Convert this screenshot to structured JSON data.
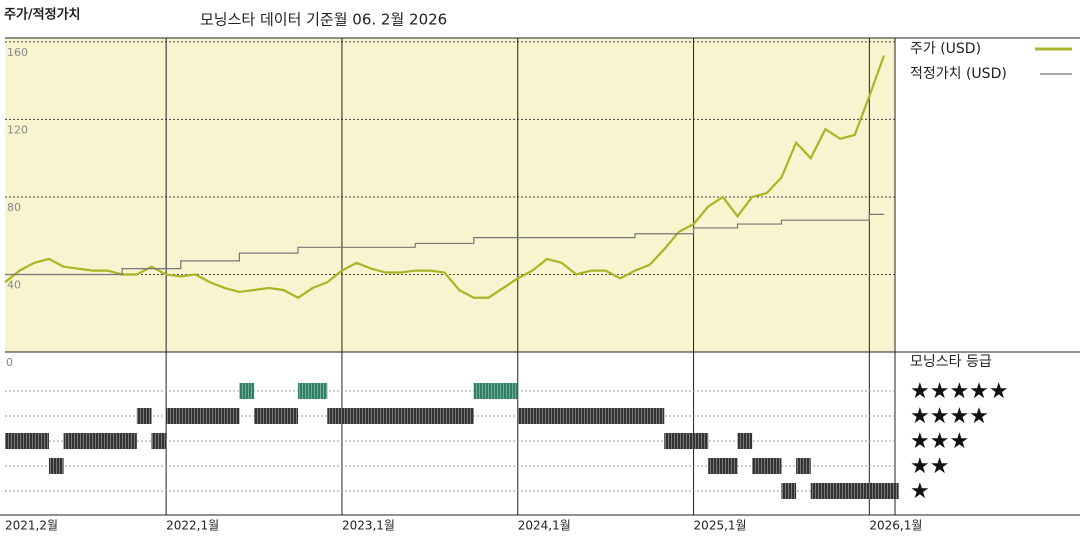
{
  "chart_data": {
    "type": "line",
    "title": "주가/적정가치",
    "subtitle": "모닝스타 데이터 기준월 06. 2월 2026",
    "x": [
      "2021-02",
      "2021-03",
      "2021-04",
      "2021-05",
      "2021-06",
      "2021-07",
      "2021-08",
      "2021-09",
      "2021-10",
      "2021-11",
      "2021-12",
      "2022-01",
      "2022-02",
      "2022-03",
      "2022-04",
      "2022-05",
      "2022-06",
      "2022-07",
      "2022-08",
      "2022-09",
      "2022-10",
      "2022-11",
      "2022-12",
      "2023-01",
      "2023-02",
      "2023-03",
      "2023-04",
      "2023-05",
      "2023-06",
      "2023-07",
      "2023-08",
      "2023-09",
      "2023-10",
      "2023-11",
      "2023-12",
      "2024-01",
      "2024-02",
      "2024-03",
      "2024-04",
      "2024-05",
      "2024-06",
      "2024-07",
      "2024-08",
      "2024-09",
      "2024-10",
      "2024-11",
      "2024-12",
      "2025-01",
      "2025-02",
      "2025-03",
      "2025-04",
      "2025-05",
      "2025-06",
      "2025-07",
      "2025-08",
      "2025-09",
      "2025-10",
      "2025-11",
      "2025-12",
      "2026-01",
      "2026-02"
    ],
    "series": [
      {
        "name": "주가 (USD)",
        "color": "#a8b526",
        "step": false,
        "values": [
          36,
          42,
          46,
          48,
          44,
          43,
          42,
          42,
          40,
          40,
          44,
          40,
          39,
          40,
          36,
          33,
          31,
          32,
          33,
          32,
          28,
          33,
          36,
          42,
          46,
          43,
          41,
          41,
          42,
          42,
          41,
          32,
          28,
          28,
          33,
          38,
          42,
          48,
          46,
          40,
          42,
          42,
          38,
          42,
          45,
          53,
          62,
          66,
          75,
          80,
          70,
          80,
          82,
          90,
          108,
          100,
          115,
          110,
          112,
          132,
          153
        ]
      },
      {
        "name": "적정가치 (USD)",
        "color": "#777777",
        "step": true,
        "values": [
          40,
          40,
          40,
          40,
          40,
          40,
          40,
          40,
          43,
          43,
          43,
          43,
          47,
          47,
          47,
          47,
          51,
          51,
          51,
          51,
          54,
          54,
          54,
          54,
          54,
          54,
          54,
          54,
          56,
          56,
          56,
          56,
          59,
          59,
          59,
          59,
          59,
          59,
          59,
          59,
          59,
          59,
          59,
          61,
          61,
          61,
          61,
          64,
          64,
          64,
          66,
          66,
          66,
          68,
          68,
          68,
          68,
          68,
          68,
          71,
          71
        ]
      }
    ],
    "ylim": [
      0,
      162
    ],
    "yticks": [
      40,
      80,
      120,
      160
    ],
    "grid": true,
    "xticks": [
      {
        "value": "2021-02",
        "label": "2021,2월"
      },
      {
        "value": "2022-01",
        "label": "2022,1월"
      },
      {
        "value": "2023-01",
        "label": "2023,1월"
      },
      {
        "value": "2024-01",
        "label": "2024,1월"
      },
      {
        "value": "2025-01",
        "label": "2025,1월"
      },
      {
        "value": "2026-01",
        "label": "2026,1월"
      }
    ],
    "rating_title": "모닝스타 등급",
    "rating_axis_label": "0",
    "rating_rows": [
      {
        "stars": 5,
        "label": "★★★★★",
        "color": "#2e7f65"
      },
      {
        "stars": 4,
        "label": "★★★★",
        "color": "#333333"
      },
      {
        "stars": 3,
        "label": "★★★",
        "color": "#333333"
      },
      {
        "stars": 2,
        "label": "★★",
        "color": "#333333"
      },
      {
        "stars": 1,
        "label": "★",
        "color": "#333333"
      }
    ],
    "rating_periods": [
      {
        "stars": 3,
        "start": "2021-02",
        "end": "2021-04"
      },
      {
        "stars": 2,
        "start": "2021-05",
        "end": "2021-05"
      },
      {
        "stars": 3,
        "start": "2021-06",
        "end": "2021-10"
      },
      {
        "stars": 4,
        "start": "2021-11",
        "end": "2021-11"
      },
      {
        "stars": 3,
        "start": "2021-12",
        "end": "2021-12"
      },
      {
        "stars": 4,
        "start": "2022-01",
        "end": "2022-05"
      },
      {
        "stars": 5,
        "start": "2022-06",
        "end": "2022-06"
      },
      {
        "stars": 4,
        "start": "2022-07",
        "end": "2022-09"
      },
      {
        "stars": 5,
        "start": "2022-10",
        "end": "2022-11"
      },
      {
        "stars": 4,
        "start": "2022-12",
        "end": "2023-09"
      },
      {
        "stars": 5,
        "start": "2023-10",
        "end": "2023-12"
      },
      {
        "stars": 4,
        "start": "2024-01",
        "end": "2024-10"
      },
      {
        "stars": 3,
        "start": "2024-11",
        "end": "2025-01"
      },
      {
        "stars": 2,
        "start": "2025-02",
        "end": "2025-03"
      },
      {
        "stars": 3,
        "start": "2025-04",
        "end": "2025-04"
      },
      {
        "stars": 2,
        "start": "2025-05",
        "end": "2025-06"
      },
      {
        "stars": 1,
        "start": "2025-07",
        "end": "2025-07"
      },
      {
        "stars": 2,
        "start": "2025-08",
        "end": "2025-08"
      },
      {
        "stars": 1,
        "start": "2025-09",
        "end": "2026-02"
      }
    ]
  }
}
